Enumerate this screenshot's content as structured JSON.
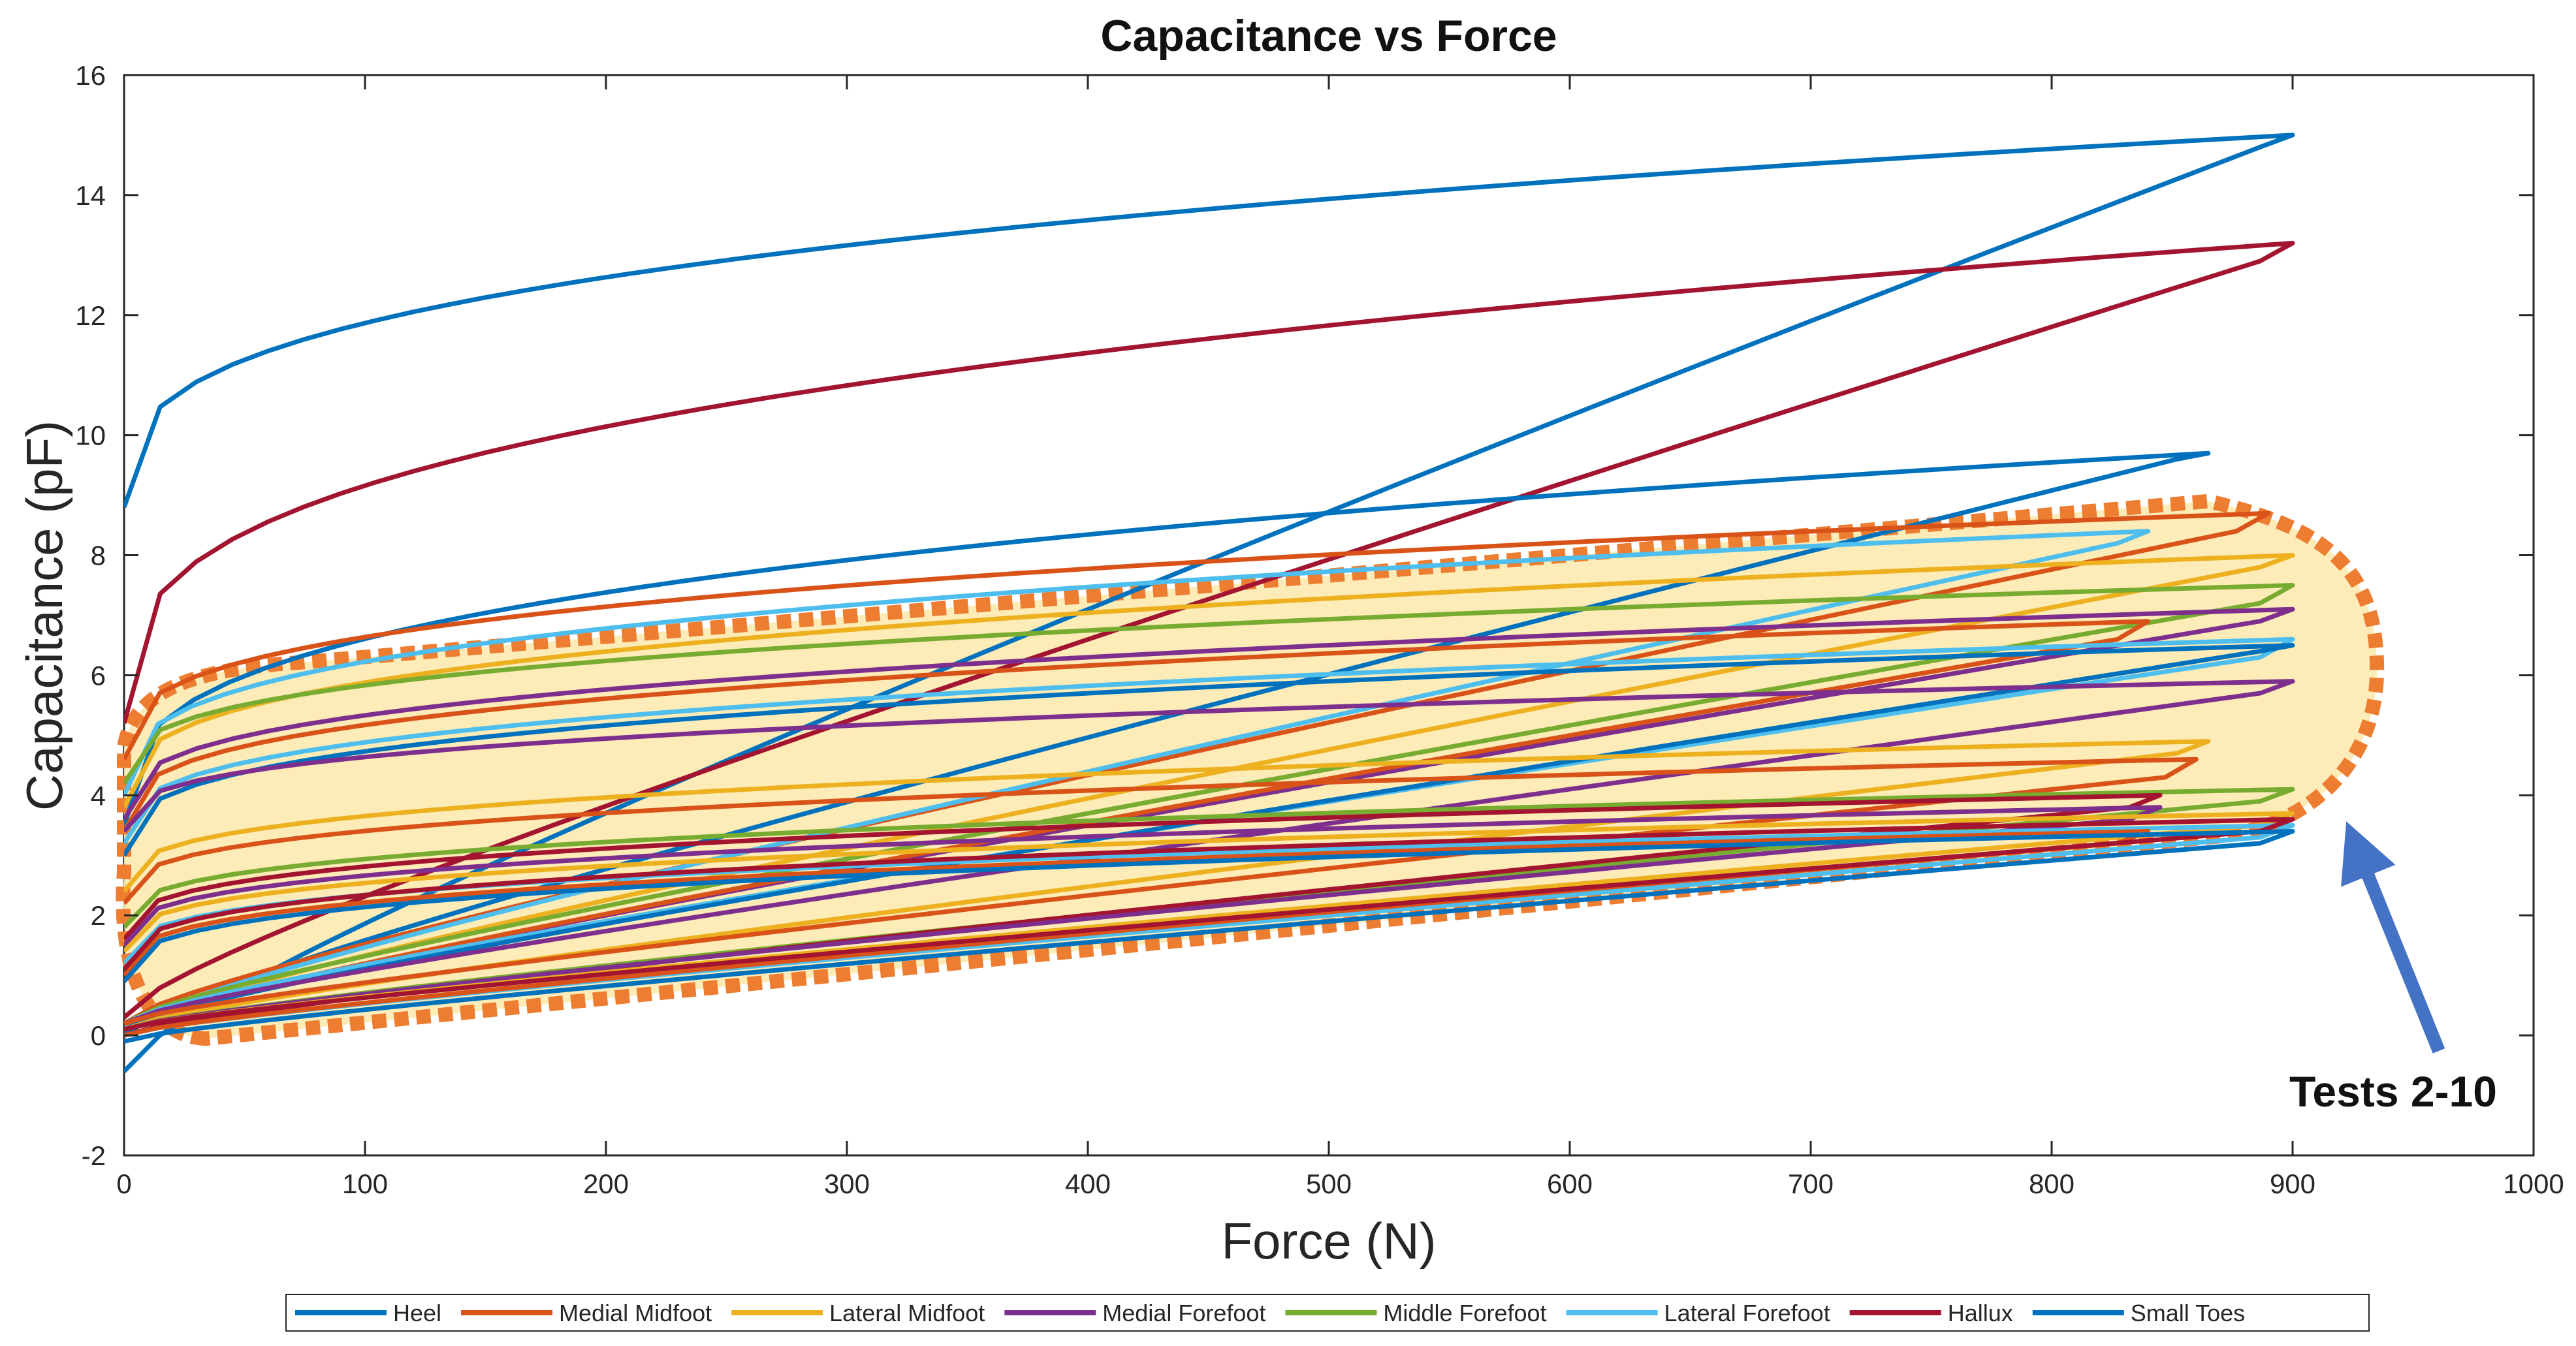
{
  "chart_data": {
    "type": "line",
    "title": "Capacitance vs Force",
    "xlabel": "Force (N)",
    "ylabel": "Capacitance (pF)",
    "xlim": [
      0,
      1000
    ],
    "ylim": [
      -2,
      16
    ],
    "xticks": [
      0,
      100,
      200,
      300,
      400,
      500,
      600,
      700,
      800,
      900,
      1000
    ],
    "yticks": [
      -2,
      0,
      2,
      4,
      6,
      8,
      10,
      12,
      14,
      16
    ],
    "grid": false,
    "legend_position": "bottom-outside",
    "series": [
      {
        "name": "Heel",
        "color": "#0072BD"
      },
      {
        "name": "Medial Midfoot",
        "color": "#D95319"
      },
      {
        "name": "Lateral Midfoot",
        "color": "#EDB120"
      },
      {
        "name": "Medial Forefoot",
        "color": "#7E2F8E"
      },
      {
        "name": "Middle Forefoot",
        "color": "#77AC30"
      },
      {
        "name": "Lateral Forefoot",
        "color": "#4DBEEE"
      },
      {
        "name": "Hallux",
        "color": "#A2142F"
      },
      {
        "name": "Small Toes",
        "color": "#0072BD"
      }
    ],
    "loops": [
      {
        "series": 0,
        "test": 1,
        "x_max": 900,
        "y_start": 8.8,
        "y_upper": 15.0,
        "y_lower": 14.8,
        "y_end": -0.6
      },
      {
        "series": 6,
        "test": 1,
        "x_max": 900,
        "y_start": 5.2,
        "y_upper": 13.2,
        "y_lower": 12.9,
        "y_end": 0.3
      },
      {
        "series": 7,
        "test": 1,
        "x_max": 865,
        "y_start": 3.5,
        "y_upper": 9.7,
        "y_lower": 9.6,
        "y_end": 0.0
      },
      {
        "series": 1,
        "test": 2,
        "x_max": 890,
        "y_start": 4.6,
        "y_upper": 8.7,
        "y_lower": 8.4,
        "y_end": 0.2
      },
      {
        "series": 5,
        "test": 2,
        "x_max": 840,
        "y_start": 4.0,
        "y_upper": 8.4,
        "y_lower": 8.2,
        "y_end": 0.1
      },
      {
        "series": 2,
        "test": 2,
        "x_max": 900,
        "y_start": 3.8,
        "y_upper": 8.0,
        "y_lower": 7.8,
        "y_end": 0.1
      },
      {
        "series": 4,
        "test": 2,
        "x_max": 900,
        "y_start": 4.2,
        "y_upper": 7.5,
        "y_lower": 7.2,
        "y_end": 0.2
      },
      {
        "series": 3,
        "test": 2,
        "x_max": 900,
        "y_start": 3.6,
        "y_upper": 7.1,
        "y_lower": 6.9,
        "y_end": 0.1
      },
      {
        "series": 1,
        "test": 3,
        "x_max": 840,
        "y_start": 3.4,
        "y_upper": 6.9,
        "y_lower": 6.6,
        "y_end": 0.1
      },
      {
        "series": 5,
        "test": 3,
        "x_max": 900,
        "y_start": 3.2,
        "y_upper": 6.6,
        "y_lower": 6.3,
        "y_end": 0.2
      },
      {
        "series": 7,
        "test": 3,
        "x_max": 900,
        "y_start": 3.0,
        "y_upper": 6.5,
        "y_lower": 6.4,
        "y_end": 0.1
      },
      {
        "series": 3,
        "test": 3,
        "x_max": 900,
        "y_start": 3.4,
        "y_upper": 5.9,
        "y_lower": 5.7,
        "y_end": 0.2
      },
      {
        "series": 2,
        "test": 3,
        "x_max": 865,
        "y_start": 2.4,
        "y_upper": 4.9,
        "y_lower": 4.7,
        "y_end": 0.1
      },
      {
        "series": 1,
        "test": 4,
        "x_max": 860,
        "y_start": 2.2,
        "y_upper": 4.6,
        "y_lower": 4.3,
        "y_end": 0.2
      },
      {
        "series": 4,
        "test": 4,
        "x_max": 900,
        "y_start": 1.8,
        "y_upper": 4.1,
        "y_lower": 3.9,
        "y_end": 0.1
      },
      {
        "series": 6,
        "test": 4,
        "x_max": 845,
        "y_start": 1.6,
        "y_upper": 4.0,
        "y_lower": 3.8,
        "y_end": 0.0
      },
      {
        "series": 3,
        "test": 4,
        "x_max": 845,
        "y_start": 1.5,
        "y_upper": 3.8,
        "y_lower": 3.6,
        "y_end": 0.1
      },
      {
        "series": 2,
        "test": 4,
        "x_max": 900,
        "y_start": 1.4,
        "y_upper": 3.7,
        "y_lower": 3.5,
        "y_end": 0.1
      },
      {
        "series": 5,
        "test": 4,
        "x_max": 900,
        "y_start": 1.2,
        "y_upper": 3.5,
        "y_lower": 3.3,
        "y_end": 0.0
      },
      {
        "series": 1,
        "test": 5,
        "x_max": 840,
        "y_start": 1.0,
        "y_upper": 3.4,
        "y_lower": 3.2,
        "y_end": 0.0
      },
      {
        "series": 6,
        "test": 5,
        "x_max": 900,
        "y_start": 1.1,
        "y_upper": 3.6,
        "y_lower": 3.4,
        "y_end": 0.1
      },
      {
        "series": 0,
        "test": 5,
        "x_max": 900,
        "y_start": 0.9,
        "y_upper": 3.4,
        "y_lower": 3.2,
        "y_end": -0.1
      }
    ],
    "highlight_region": {
      "label": "Tests 2-10",
      "x_range": [
        0,
        935
      ],
      "y_range": [
        0,
        8.9
      ]
    }
  }
}
